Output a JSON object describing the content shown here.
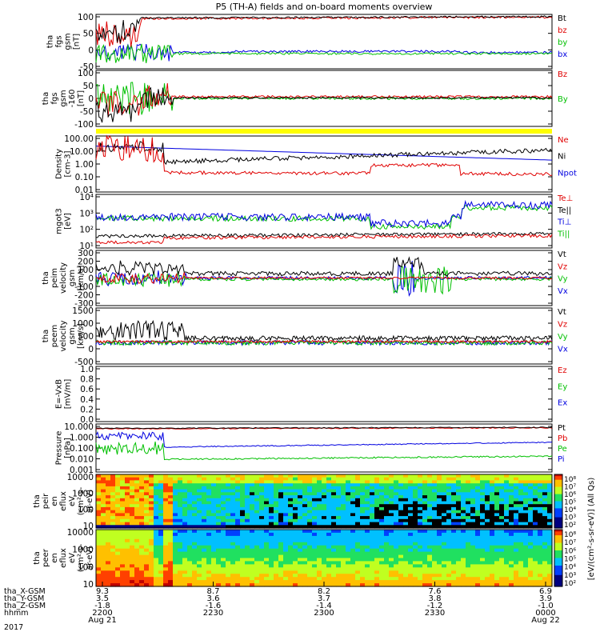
{
  "chart_data": {
    "type": "line",
    "title": "P5 (TH-A) fields and on-board moments overview",
    "panels": [
      {
        "id": "fgs",
        "ylabel": [
          "tha",
          "fgs",
          "gsm",
          "[nT]"
        ],
        "ticks": [
          "100",
          "50",
          "0",
          "-50"
        ],
        "legend": [
          {
            "label": "Bt",
            "color": "#000000"
          },
          {
            "label": "bz",
            "color": "#e00000"
          },
          {
            "label": "by",
            "color": "#00c000"
          },
          {
            "label": "bx",
            "color": "#0000e0"
          }
        ]
      },
      {
        "id": "fgs2",
        "ylabel": [
          "tha",
          "fgs",
          "gsm",
          "-160",
          "[nT]"
        ],
        "ticks": [
          "100",
          "50",
          "0",
          "-50",
          "-100"
        ],
        "legend": [
          {
            "label": "Bz",
            "color": "#e00000"
          },
          {
            "label": "By",
            "color": "#00c000"
          }
        ]
      },
      {
        "id": "density",
        "ylabel": [
          "Density",
          "[cm-3]"
        ],
        "ticks": [
          "100.00",
          "10.00",
          "1.00",
          "0.10",
          "0.01"
        ],
        "legend": [
          {
            "label": "Ne",
            "color": "#e00000"
          },
          {
            "label": "Ni",
            "color": "#000000"
          },
          {
            "label": "Npot",
            "color": "#0000e0"
          }
        ]
      },
      {
        "id": "temp",
        "ylabel": [
          "mgot3",
          "[eV]"
        ],
        "ticks": [
          "10⁴",
          "10³",
          "10²",
          "10¹"
        ],
        "legend": [
          {
            "label": "Te⊥",
            "color": "#e00000"
          },
          {
            "label": "Te||",
            "color": "#000000"
          },
          {
            "label": "Ti⊥",
            "color": "#0000e0"
          },
          {
            "label": "Ti||",
            "color": "#00c000"
          }
        ]
      },
      {
        "id": "vi",
        "ylabel": [
          "tha",
          "peim",
          "velocity",
          "gsm",
          "[km/s]"
        ],
        "ticks": [
          "300",
          "200",
          "100",
          "0",
          "-100",
          "-200",
          "-300"
        ],
        "legend": [
          {
            "label": "Vt",
            "color": "#000000"
          },
          {
            "label": "Vz",
            "color": "#e00000"
          },
          {
            "label": "Vy",
            "color": "#00c000"
          },
          {
            "label": "Vx",
            "color": "#0000e0"
          }
        ]
      },
      {
        "id": "ve",
        "ylabel": [
          "tha",
          "peem",
          "velocity",
          "gsm",
          "[km/s]"
        ],
        "ticks": [
          "1500",
          "1000",
          "500",
          "0",
          "-500"
        ],
        "legend": [
          {
            "label": "Vt",
            "color": "#000000"
          },
          {
            "label": "Vz",
            "color": "#e00000"
          },
          {
            "label": "Vy",
            "color": "#00c000"
          },
          {
            "label": "Vx",
            "color": "#0000e0"
          }
        ]
      },
      {
        "id": "efield",
        "ylabel": [
          "E=-VxB",
          "[mV/m]"
        ],
        "ticks": [
          "1.0",
          "0.8",
          "0.6",
          "0.4",
          "0.2",
          "0.0"
        ],
        "legend": [
          {
            "label": "Ez",
            "color": "#e00000"
          },
          {
            "label": "Ey",
            "color": "#00c000"
          },
          {
            "label": "Ex",
            "color": "#0000e0"
          }
        ]
      },
      {
        "id": "pressure",
        "ylabel": [
          "Pressure",
          "[nPa]"
        ],
        "ticks": [
          "10.000",
          "1.000",
          "0.100",
          "0.010",
          "0.001"
        ],
        "legend": [
          {
            "label": "Pt",
            "color": "#000000"
          },
          {
            "label": "Pb",
            "color": "#e00000"
          },
          {
            "label": "Pe",
            "color": "#00c000"
          },
          {
            "label": "Pi",
            "color": "#0000e0"
          }
        ]
      },
      {
        "id": "peir",
        "ylabel": [
          "tha",
          "peir",
          "en",
          "eflux",
          "eV",
          "(cm²-s-",
          "sr-eV)"
        ],
        "ticks": [
          "10000",
          "1000",
          "100",
          "10"
        ],
        "cbar_label": "[eV/(cm²-s-sr-eV)] (All Qs)",
        "cbar_ticks": [
          "10⁸",
          "10⁷",
          "10⁶",
          "10⁵",
          "10⁴",
          "10³",
          "10²"
        ]
      },
      {
        "id": "peer",
        "ylabel": [
          "tha",
          "peer",
          "en",
          "eflux",
          "eV",
          "(cm²-s-",
          "sr-eV)"
        ],
        "ticks": [
          "10000",
          "1000",
          "100",
          "10"
        ],
        "cbar_label": "",
        "cbar_ticks": [
          "10⁸",
          "10⁷",
          "10⁶",
          "10⁵",
          "10⁴",
          "10³",
          "10²"
        ]
      }
    ],
    "xaxis": {
      "row_labels": [
        "tha_X-GSM",
        "tha_Y-GSM",
        "tha_Z-GSM",
        "hhmm",
        "2017"
      ],
      "ticks": [
        {
          "x_gsm": "9.3",
          "y_gsm": "3.5",
          "z_gsm": "-1.8",
          "hhmm": "2200",
          "date": "Aug 21"
        },
        {
          "x_gsm": "8.7",
          "y_gsm": "3.6",
          "z_gsm": "-1.6",
          "hhmm": "2230",
          "date": ""
        },
        {
          "x_gsm": "8.2",
          "y_gsm": "3.7",
          "z_gsm": "-1.4",
          "hhmm": "2300",
          "date": ""
        },
        {
          "x_gsm": "7.6",
          "y_gsm": "3.8",
          "z_gsm": "-1.2",
          "hhmm": "2330",
          "date": ""
        },
        {
          "x_gsm": "6.9",
          "y_gsm": "3.9",
          "z_gsm": "-1.0",
          "hhmm": "0000",
          "date": "Aug 22"
        }
      ]
    }
  }
}
